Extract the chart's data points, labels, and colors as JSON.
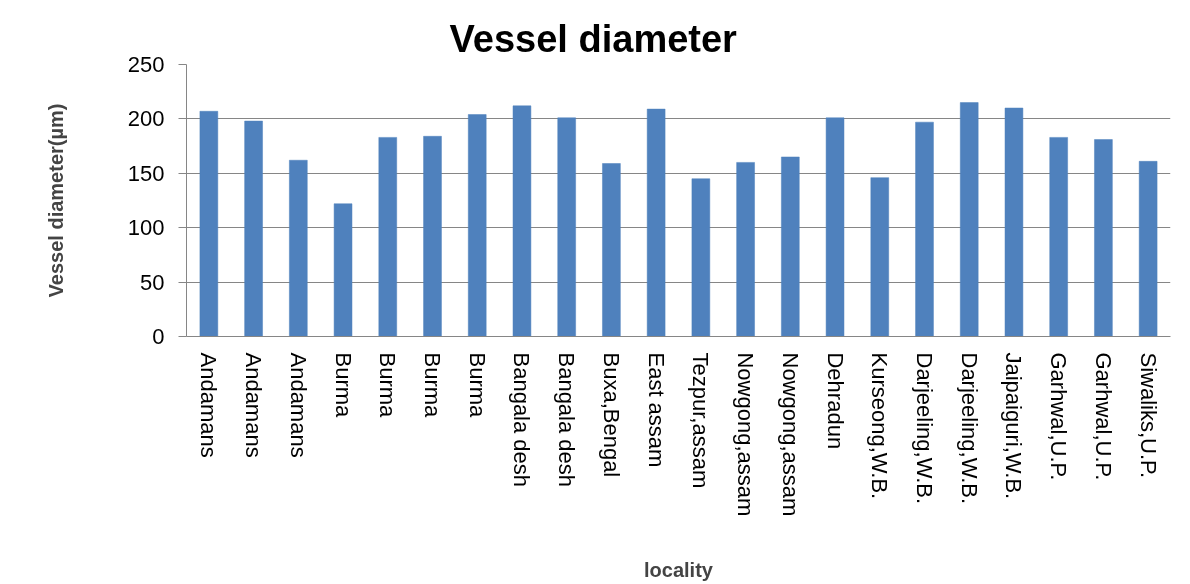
{
  "chart_data": {
    "type": "bar",
    "title": "Vessel diameter",
    "xlabel": "locality",
    "ylabel": "Vessel diameter(µm)",
    "categories": [
      "Andamans",
      "Andamans",
      "Andamans",
      "Burma",
      "Burma",
      "Burma",
      "Burma",
      "Bangala desh",
      "Bangala desh",
      "Buxa,Bengal",
      "East assam",
      "Tezpur,assam",
      "Nowgong,assam",
      "Nowgong,assam",
      "Dehradun",
      "Kurseong,W.B.",
      "Darjeeling,W.B.",
      "Darjeeling,W.B.",
      "Jaipaiguri,W.B.",
      "Garhwal,U.P.",
      "Garhwal,U.P.",
      "Siwaliks,U.P."
    ],
    "values": [
      207,
      198,
      162,
      122,
      183,
      184,
      204,
      212,
      201,
      159,
      209,
      145,
      160,
      165,
      201,
      146,
      197,
      215,
      210,
      183,
      181,
      161
    ],
    "color": "#4f81bd",
    "ylim": [
      0,
      250
    ],
    "yticks": [
      0,
      50,
      100,
      150,
      200,
      250
    ],
    "grid": "y"
  }
}
